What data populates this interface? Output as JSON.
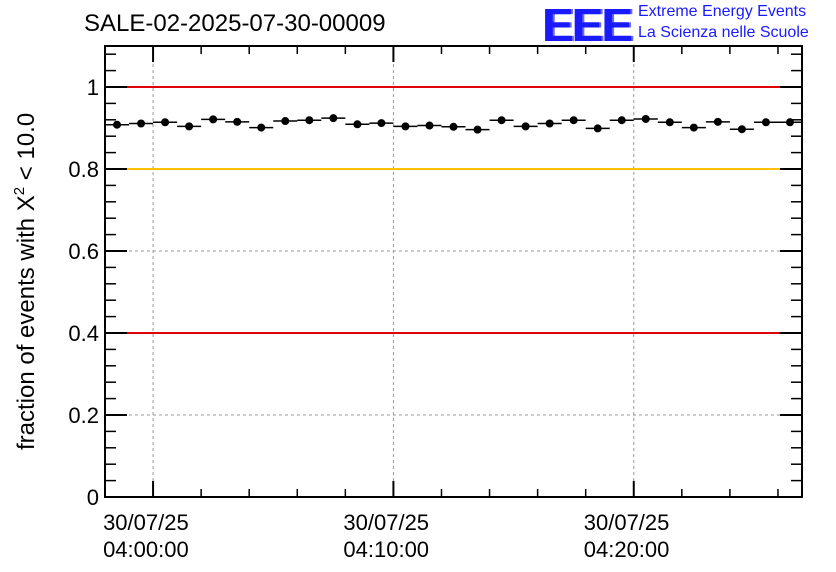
{
  "header": {
    "run_title": "SALE-02-2025-07-30-00009"
  },
  "logo": {
    "mark": "EEE",
    "line1": "Extreme Energy Events",
    "line2": "La Scienza nelle Scuole",
    "color": "#1a1aff"
  },
  "chart_data": {
    "type": "scatter",
    "title": "SALE-02-2025-07-30-00009",
    "ylabel": "fraction of events with Χ² < 10.0",
    "ylabel_parts": {
      "before": "fraction of events with Χ",
      "sup": "2",
      "after": " < 10.0"
    },
    "xlabel": "",
    "xlim_minutes": [
      -2,
      27
    ],
    "ylim": [
      0,
      1.1
    ],
    "y_ticks": [
      0,
      0.2,
      0.4,
      0.6,
      0.8,
      1
    ],
    "y_tick_labels": [
      "0",
      "0.2",
      "0.4",
      "0.6",
      "0.8",
      "1"
    ],
    "x_ticks_minutes": [
      0,
      10,
      20
    ],
    "x_tick_labels": [
      {
        "date": "30/07/25",
        "time": "04:00:00"
      },
      {
        "date": "30/07/25",
        "time": "04:10:00"
      },
      {
        "date": "30/07/25",
        "time": "04:20:00"
      }
    ],
    "grid": true,
    "reference_lines": [
      {
        "y": 1.0,
        "color": "#e00000"
      },
      {
        "y": 0.8,
        "color": "#ffc000"
      },
      {
        "y": 0.4,
        "color": "#e00000"
      }
    ],
    "bin_width_minutes": 1,
    "series": [
      {
        "name": "fraction",
        "color": "#000000",
        "x": [
          -1.5,
          -0.5,
          0.5,
          1.5,
          2.5,
          3.5,
          4.5,
          5.5,
          6.5,
          7.5,
          8.5,
          9.5,
          10.5,
          11.5,
          12.5,
          13.5,
          14.5,
          15.5,
          16.5,
          17.5,
          18.5,
          19.5,
          20.5,
          21.5,
          22.5,
          23.5,
          24.5,
          25.5,
          26.5
        ],
        "y": [
          0.908,
          0.911,
          0.914,
          0.904,
          0.921,
          0.915,
          0.901,
          0.917,
          0.919,
          0.924,
          0.909,
          0.912,
          0.904,
          0.906,
          0.903,
          0.896,
          0.919,
          0.904,
          0.911,
          0.919,
          0.899,
          0.919,
          0.922,
          0.914,
          0.901,
          0.915,
          0.897,
          0.914,
          0.914
        ]
      }
    ]
  }
}
